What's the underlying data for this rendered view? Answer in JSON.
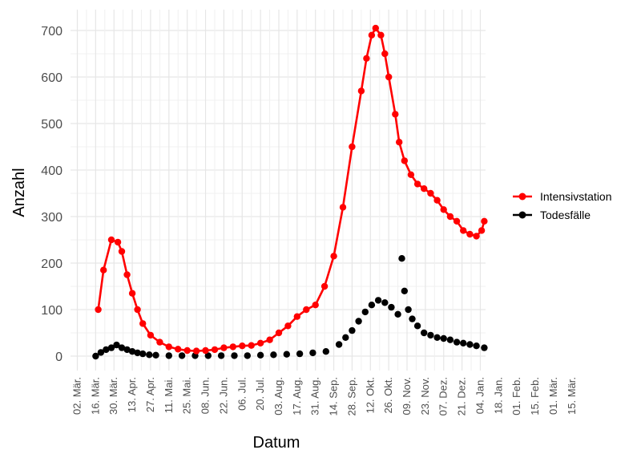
{
  "chart_data": {
    "type": "line",
    "xlabel": "Datum",
    "ylabel": "Anzahl",
    "ylim": [
      -20,
      720
    ],
    "y_ticks": [
      0,
      100,
      200,
      300,
      400,
      500,
      600,
      700
    ],
    "x_ticks": [
      "02. Mär.",
      "16. Mär.",
      "30. Mär.",
      "13. Apr.",
      "27. Apr.",
      "11. Mai.",
      "25. Mai.",
      "08. Jun.",
      "22. Jun.",
      "06. Jul.",
      "20. Jul.",
      "03. Aug.",
      "17. Aug.",
      "31. Aug.",
      "14. Sep.",
      "28. Sep.",
      "12. Okt.",
      "26. Okt.",
      "09. Nov.",
      "23. Nov.",
      "07. Dez.",
      "21. Dez.",
      "04. Jan.",
      "18. Jan.",
      "01. Feb.",
      "15. Feb.",
      "01. Mär.",
      "15. Mär."
    ],
    "grid": true,
    "legend_position": "right",
    "series": [
      {
        "name": "Intensivstation",
        "color": "#ff0000",
        "style": "line+points",
        "values": [
          [
            0,
            null
          ],
          [
            16,
            100
          ],
          [
            20,
            185
          ],
          [
            26,
            250
          ],
          [
            31,
            245
          ],
          [
            34,
            225
          ],
          [
            38,
            175
          ],
          [
            42,
            135
          ],
          [
            46,
            100
          ],
          [
            50,
            70
          ],
          [
            56,
            45
          ],
          [
            63,
            30
          ],
          [
            70,
            20
          ],
          [
            77,
            15
          ],
          [
            84,
            12
          ],
          [
            91,
            11
          ],
          [
            98,
            12
          ],
          [
            105,
            14
          ],
          [
            112,
            18
          ],
          [
            119,
            20
          ],
          [
            126,
            22
          ],
          [
            133,
            23
          ],
          [
            140,
            28
          ],
          [
            147,
            35
          ],
          [
            154,
            50
          ],
          [
            161,
            65
          ],
          [
            168,
            85
          ],
          [
            175,
            100
          ],
          [
            182,
            110
          ],
          [
            189,
            150
          ],
          [
            196,
            215
          ],
          [
            203,
            320
          ],
          [
            210,
            450
          ],
          [
            217,
            570
          ],
          [
            221,
            640
          ],
          [
            225,
            690
          ],
          [
            228,
            705
          ],
          [
            232,
            690
          ],
          [
            235,
            650
          ],
          [
            238,
            600
          ],
          [
            243,
            520
          ],
          [
            246,
            460
          ],
          [
            250,
            420
          ],
          [
            255,
            390
          ],
          [
            260,
            370
          ],
          [
            265,
            360
          ],
          [
            270,
            350
          ],
          [
            275,
            335
          ],
          [
            280,
            315
          ],
          [
            285,
            300
          ],
          [
            290,
            290
          ],
          [
            295,
            270
          ],
          [
            300,
            262
          ],
          [
            305,
            258
          ],
          [
            309,
            270
          ],
          [
            311,
            290
          ]
        ]
      },
      {
        "name": "Todesfälle",
        "color": "#000000",
        "style": "points",
        "values": [
          [
            14,
            0
          ],
          [
            18,
            8
          ],
          [
            22,
            14
          ],
          [
            26,
            18
          ],
          [
            30,
            24
          ],
          [
            34,
            18
          ],
          [
            38,
            14
          ],
          [
            42,
            10
          ],
          [
            46,
            7
          ],
          [
            50,
            5
          ],
          [
            55,
            3
          ],
          [
            60,
            2
          ],
          [
            70,
            1
          ],
          [
            80,
            1
          ],
          [
            90,
            1
          ],
          [
            100,
            1
          ],
          [
            110,
            1
          ],
          [
            120,
            1
          ],
          [
            130,
            1
          ],
          [
            140,
            2
          ],
          [
            150,
            3
          ],
          [
            160,
            4
          ],
          [
            170,
            5
          ],
          [
            180,
            7
          ],
          [
            190,
            10
          ],
          [
            200,
            25
          ],
          [
            205,
            40
          ],
          [
            210,
            55
          ],
          [
            215,
            75
          ],
          [
            220,
            95
          ],
          [
            225,
            110
          ],
          [
            230,
            120
          ],
          [
            235,
            115
          ],
          [
            240,
            105
          ],
          [
            245,
            90
          ],
          [
            248,
            210
          ],
          [
            250,
            140
          ],
          [
            253,
            100
          ],
          [
            256,
            80
          ],
          [
            260,
            65
          ],
          [
            265,
            50
          ],
          [
            270,
            45
          ],
          [
            275,
            40
          ],
          [
            280,
            38
          ],
          [
            285,
            35
          ],
          [
            290,
            30
          ],
          [
            295,
            28
          ],
          [
            300,
            25
          ],
          [
            305,
            22
          ],
          [
            311,
            18
          ]
        ]
      }
    ]
  }
}
